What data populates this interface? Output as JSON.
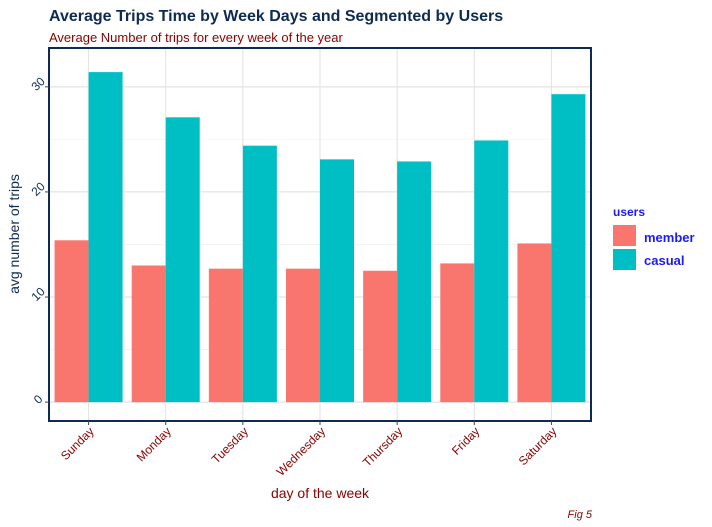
{
  "chart_data": {
    "type": "bar",
    "title": "Average Trips Time by Week Days and Segmented by Users",
    "subtitle": "Average Number of trips for every week of the year",
    "xlabel": "day of the week",
    "ylabel": "avg number of trips",
    "caption": "Fig 5",
    "categories": [
      "Sunday",
      "Monday",
      "Tuesday",
      "Wednesday",
      "Thursday",
      "Friday",
      "Saturday"
    ],
    "series": [
      {
        "name": "member",
        "color": "#f8766d",
        "values": [
          15.4,
          13.0,
          12.7,
          12.7,
          12.5,
          13.2,
          15.1
        ]
      },
      {
        "name": "casual",
        "color": "#00bfc4",
        "values": [
          31.4,
          27.1,
          24.4,
          23.1,
          22.9,
          24.9,
          29.3
        ]
      }
    ],
    "ylim": [
      -1.7,
      33.6
    ],
    "yticks": [
      0,
      10,
      20,
      30
    ],
    "grid": true,
    "legend": {
      "title": "users",
      "position": "right"
    }
  }
}
